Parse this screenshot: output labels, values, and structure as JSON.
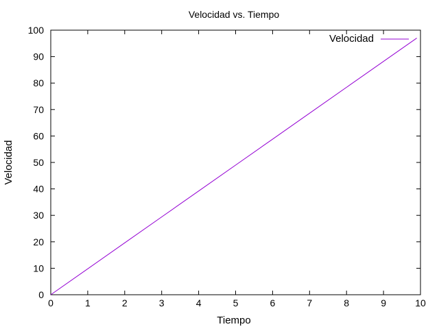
{
  "chart_data": {
    "type": "line",
    "title": "Velocidad vs. Tiempo",
    "xlabel": "Tiempo",
    "ylabel": "Velocidad",
    "xlim": [
      0,
      10
    ],
    "ylim": [
      0,
      100
    ],
    "xticks": [
      0,
      1,
      2,
      3,
      4,
      5,
      6,
      7,
      8,
      9,
      10
    ],
    "yticks": [
      0,
      10,
      20,
      30,
      40,
      50,
      60,
      70,
      80,
      90,
      100
    ],
    "grid": false,
    "legend_position": "top-right",
    "series": [
      {
        "name": "Velocidad",
        "color": "#9400d3",
        "x": [
          0,
          1,
          2,
          3,
          4,
          5,
          6,
          7,
          8,
          9,
          9.9
        ],
        "y": [
          0,
          9.8,
          19.6,
          29.4,
          39.2,
          49.0,
          58.8,
          68.6,
          78.4,
          88.2,
          97.0
        ]
      }
    ]
  }
}
